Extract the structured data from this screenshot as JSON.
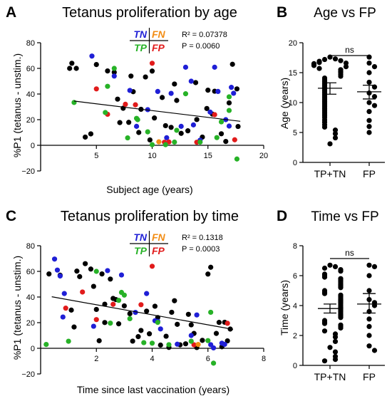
{
  "colors": {
    "TN": "#1f1fd6",
    "FN": "#f28c13",
    "TP": "#27b227",
    "FP": "#e11b1b",
    "black": "#000000"
  },
  "chart_data": [
    {
      "panel": "A",
      "type": "scatter",
      "title": "Tetanus proliferation by age",
      "xlabel": "Subject age (years)",
      "ylabel": "%P1 (tetanus - unstim.)",
      "xlim": [
        0,
        20
      ],
      "ylim": [
        -20,
        80
      ],
      "xticks": [
        5,
        10,
        15,
        20
      ],
      "yticks": [
        -20,
        0,
        20,
        40,
        60,
        80
      ],
      "legend": {
        "tn": "TN",
        "fn": "FN",
        "tp": "TP",
        "fp": "FP"
      },
      "stats": [
        "R² = 0.07378",
        "P = 0.0060"
      ],
      "regression": {
        "x": [
          3.0,
          17.9
        ],
        "y": [
          34.5,
          18.7
        ]
      },
      "series": [
        {
          "group": "TN",
          "color": "#1f1fd6",
          "x": [
            4.6,
            6.6,
            8.0,
            8.6,
            10.5,
            11.3,
            11.7,
            12.6,
            13.0,
            13.5,
            14.3,
            15.2,
            15.6,
            15.9,
            16.6,
            16.9,
            17.1,
            17.3,
            9.6,
            13.7
          ],
          "y": [
            69.6,
            54.0,
            42.8,
            14.8,
            42.0,
            5.9,
            40.5,
            14.8,
            60.9,
            50.0,
            4.0,
            25.9,
            60.9,
            42.0,
            20.0,
            15.0,
            45.2,
            40.6,
            27.8,
            15.9
          ]
        },
        {
          "group": "TP",
          "color": "#27b227",
          "x": [
            3.0,
            6.0,
            6.6,
            7.8,
            8.6,
            8.7,
            9.6,
            10.0,
            11.2,
            12.0,
            12.2,
            13.0,
            14.3,
            15.8,
            16.2,
            16.9,
            17.6,
            5.8,
            16.9
          ],
          "y": [
            33.4,
            46.0,
            60.0,
            5.8,
            21.0,
            20.0,
            10.5,
            0.5,
            0.5,
            2.5,
            11.7,
            40.2,
            2.5,
            6.0,
            18.3,
            27.2,
            -10.7,
            25.6,
            37.8
          ]
        },
        {
          "group": "FP",
          "color": "#e11b1b",
          "x": [
            5.0,
            6.0,
            7.6,
            8.5,
            10.0,
            11.1,
            11.5,
            14.0,
            15.6,
            17.4
          ],
          "y": [
            44.0,
            24.2,
            32.0,
            31.6,
            64.0,
            2.4,
            2.6,
            2.4,
            23.9,
            4.3
          ]
        },
        {
          "group": "FN",
          "color": "#f28c13",
          "x": [
            10.6
          ],
          "y": [
            2.7
          ]
        },
        {
          "group": "Other",
          "color": "#000000",
          "x": [
            2.6,
            2.8,
            3.2,
            4.0,
            4.5,
            5.0,
            6.0,
            6.6,
            6.9,
            7.1,
            7.4,
            7.9,
            8.1,
            8.3,
            8.8,
            9.0,
            9.4,
            9.8,
            10.0,
            10.2,
            10.9,
            11.2,
            11.7,
            12.0,
            12.2,
            12.6,
            13.2,
            13.9,
            14.0,
            14.5,
            14.9,
            15.0,
            15.4,
            15.6,
            16.2,
            16.6,
            16.9,
            17.2,
            17.6,
            17.7
          ],
          "y": [
            60.0,
            64.0,
            60.0,
            6.4,
            8.9,
            63.0,
            58.0,
            57.0,
            36.0,
            17.7,
            28.9,
            17.9,
            54.0,
            41.8,
            10.0,
            28.1,
            53.3,
            4.2,
            57.9,
            21.3,
            37.3,
            15.3,
            14.0,
            47.8,
            35.0,
            9.3,
            11.3,
            48.9,
            20.1,
            6.4,
            28.7,
            43.0,
            24.3,
            42.2,
            9.0,
            3.0,
            33.1,
            63.2,
            44.0,
            14.7
          ]
        }
      ]
    },
    {
      "panel": "B",
      "type": "scatter",
      "title": "Age vs FP",
      "ylabel": "Age (years)",
      "categories": [
        "TP+TN",
        "FP"
      ],
      "ylim": [
        0,
        20
      ],
      "yticks": [
        0,
        5,
        10,
        15,
        20
      ],
      "significance": "ns",
      "summary": [
        {
          "mean": 12.4,
          "sem_low": 11.4,
          "sem_high": 13.3
        },
        {
          "mean": 11.8,
          "sem_low": 10.6,
          "sem_high": 12.9
        }
      ],
      "series": [
        {
          "name": "TP+TN",
          "values": [
            17.6,
            17.3,
            17.2,
            17.0,
            16.9,
            16.7,
            16.6,
            16.5,
            16.4,
            16.2,
            16.0,
            15.7,
            15.5,
            15.2,
            15.0,
            14.7,
            14.4,
            14.1,
            13.8,
            13.5,
            13.2,
            12.9,
            12.6,
            12.3,
            12.0,
            11.7,
            11.4,
            11.1,
            10.8,
            10.5,
            10.2,
            9.9,
            9.6,
            9.3,
            9.0,
            8.7,
            8.4,
            8.1,
            7.8,
            7.5,
            7.1,
            6.7,
            6.3,
            5.9,
            5.4,
            4.8,
            4.1,
            3.1
          ]
        },
        {
          "name": "FP",
          "values": [
            17.6,
            16.6,
            16.0,
            15.0,
            13.4,
            12.6,
            11.6,
            11.0,
            10.0,
            9.5,
            8.5,
            7.0,
            6.0,
            5.0
          ]
        }
      ]
    },
    {
      "panel": "C",
      "type": "scatter",
      "title": "Tetanus proliferation by time",
      "xlabel": "Time since last vaccination (years)",
      "ylabel": "%P1 (tetanus - unstim.)",
      "xlim": [
        0,
        8
      ],
      "ylim": [
        -20,
        80
      ],
      "xticks": [
        2,
        4,
        6,
        8
      ],
      "yticks": [
        -20,
        0,
        20,
        40,
        60,
        80
      ],
      "legend": {
        "tn": "TN",
        "fn": "FN",
        "tp": "TP",
        "fp": "FP"
      },
      "stats": [
        "R² = 0.1318",
        "P = 0.0003"
      ],
      "regression": {
        "x": [
          0.4,
          6.9
        ],
        "y": [
          40.2,
          14.8
        ]
      },
      "series": [
        {
          "group": "TN",
          "color": "#1f1fd6",
          "x": [
            0.5,
            0.6,
            0.7,
            0.85,
            0.8,
            1.9,
            2.4,
            2.9,
            3.4,
            3.8,
            4.1,
            4.2,
            4.3,
            4.9,
            5.4,
            5.6,
            6.1,
            6.2,
            6.5,
            6.6
          ],
          "y": [
            69.6,
            61.0,
            56.4,
            42.7,
            24.4,
            17.2,
            60.6,
            57.2,
            28.0,
            42.7,
            21.5,
            21.0,
            15.1,
            3.2,
            10.0,
            26.0,
            2.8,
            0.3,
            4.0,
            3.1
          ]
        },
        {
          "group": "TP",
          "color": "#27b227",
          "x": [
            0.2,
            1.0,
            2.0,
            2.5,
            2.8,
            2.9,
            3.0,
            3.2,
            3.7,
            4.0,
            4.2,
            4.6,
            5.4,
            6.0,
            6.1,
            6.2
          ],
          "y": [
            3.0,
            5.5,
            60.0,
            19.6,
            37.4,
            43.6,
            41.5,
            23.1,
            4.4,
            4.0,
            20.2,
            2.8,
            5.5,
            6.0,
            28.1,
            -11.6
          ]
        },
        {
          "group": "FP",
          "color": "#e11b1b",
          "x": [
            0.9,
            1.5,
            2.0,
            2.6,
            3.6,
            4.0,
            5.5,
            6.7
          ],
          "y": [
            31.3,
            43.9,
            22.4,
            34.3,
            34.0,
            64.0,
            2.7,
            19.5
          ]
        },
        {
          "group": "FN",
          "color": "#f28c13",
          "x": [
            5.65
          ],
          "y": [
            3.0
          ]
        },
        {
          "group": "Other",
          "color": "#000000",
          "x": [
            0.7,
            1.1,
            1.2,
            1.4,
            1.6,
            1.8,
            2.0,
            2.1,
            2.2,
            2.3,
            2.5,
            2.6,
            2.7,
            2.8,
            3.0,
            3.2,
            3.3,
            3.5,
            3.6,
            3.8,
            3.9,
            4.1,
            4.2,
            4.3,
            4.5,
            4.6,
            4.7,
            4.8,
            4.9,
            5.0,
            5.2,
            5.3,
            5.4,
            5.5,
            5.6,
            5.8,
            6.0,
            6.1,
            6.3,
            6.4,
            6.5,
            6.6,
            6.7,
            6.8,
            0.3,
            1.3,
            1.9,
            2.3
          ],
          "y": [
            57.0,
            29.8,
            16.6,
            55.9,
            66.0,
            61.8,
            30.3,
            5.9,
            58.0,
            20.1,
            54.0,
            38.9,
            38.0,
            19.1,
            33.1,
            27.0,
            5.6,
            9.1,
            13.9,
            29.0,
            11.3,
            32.8,
            24.0,
            2.5,
            9.4,
            0.7,
            28.1,
            37.1,
            18.7,
            2.7,
            3.5,
            26.5,
            18.3,
            11.6,
            0.6,
            6.2,
            57.9,
            63.2,
            11.6,
            20.2,
            1.2,
            20.3,
            5.8,
            15.0,
            58.0,
            60.2,
            48.3,
            34.4
          ]
        }
      ]
    },
    {
      "panel": "D",
      "type": "scatter",
      "title": "Time vs FP",
      "ylabel": "Time (years)",
      "categories": [
        "TP+TN",
        "FP"
      ],
      "ylim": [
        0,
        8
      ],
      "yticks": [
        0,
        2,
        4,
        6,
        8
      ],
      "significance": "ns",
      "summary": [
        {
          "mean": 3.8,
          "sem_low": 3.5,
          "sem_high": 4.1
        },
        {
          "mean": 4.1,
          "sem_low": 3.5,
          "sem_high": 4.8
        }
      ],
      "series": [
        {
          "name": "TP+TN",
          "values": [
            6.7,
            6.6,
            6.5,
            6.4,
            6.3,
            6.1,
            6.0,
            5.9,
            5.8,
            5.7,
            5.6,
            5.5,
            5.4,
            5.3,
            5.2,
            5.0,
            4.9,
            4.8,
            4.7,
            4.6,
            4.5,
            4.4,
            4.3,
            4.2,
            4.1,
            4.0,
            3.9,
            3.8,
            3.7,
            3.6,
            3.5,
            3.4,
            3.3,
            3.2,
            3.0,
            2.9,
            2.8,
            2.7,
            2.6,
            2.5,
            2.3,
            2.1,
            1.9,
            1.6,
            1.2,
            0.9,
            0.6,
            0.4,
            0.3
          ]
        },
        {
          "name": "FP",
          "values": [
            6.7,
            6.6,
            6.0,
            5.0,
            4.4,
            4.2,
            4.0,
            3.6,
            3.1,
            2.6,
            2.0,
            1.3,
            1.0
          ]
        }
      ]
    }
  ],
  "panels": [
    {
      "letter": "A"
    },
    {
      "letter": "B"
    },
    {
      "letter": "C"
    },
    {
      "letter": "D"
    }
  ]
}
